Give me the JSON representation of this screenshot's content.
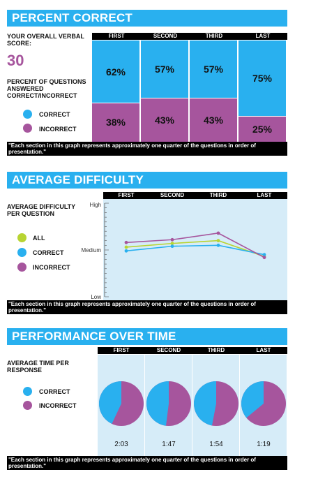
{
  "section1": {
    "title": "PERCENT CORRECT",
    "score_label": "YOUR OVERALL VERBAL SCORE:",
    "score": "30",
    "subtitle": "PERCENT OF QUESTIONS ANSWERED CORRECT/INCORRECT",
    "legend": {
      "correct": "CORRECT",
      "incorrect": "INCORRECT"
    },
    "footnote": "\"Each section in this graph represents approximately one quarter of the questions in order of presentation.\""
  },
  "section2": {
    "title": "AVERAGE DIFFICULTY",
    "subtitle": "AVERAGE DIFFICULTY PER QUESTION",
    "legend": {
      "all": "ALL",
      "correct": "CORRECT",
      "incorrect": "INCORRECT"
    },
    "footnote": "\"Each section in this graph represents approximately one quarter of the questions in order of presentation.\""
  },
  "section3": {
    "title": "PERFORMANCE OVER TIME",
    "subtitle": "AVERAGE TIME PER RESPONSE",
    "legend": {
      "correct": "CORRECT",
      "incorrect": "INCORRECT"
    },
    "footnote": "\"Each section in this graph represents approximately one quarter of the questions in order of presentation.\""
  },
  "colors": {
    "blue": "#29b0ef",
    "purple": "#a6559d",
    "green": "#b8d432",
    "panel": "#d6ecf8"
  },
  "chart_data": [
    {
      "type": "bar",
      "title": "PERCENT CORRECT",
      "categories": [
        "FIRST",
        "SECOND",
        "THIRD",
        "LAST"
      ],
      "series": [
        {
          "name": "CORRECT",
          "values": [
            62,
            57,
            57,
            75
          ],
          "labels": [
            "62%",
            "57%",
            "57%",
            "75%"
          ]
        },
        {
          "name": "INCORRECT",
          "values": [
            38,
            43,
            43,
            25
          ],
          "labels": [
            "38%",
            "43%",
            "43%",
            "25%"
          ]
        }
      ],
      "ylim": [
        0,
        100
      ]
    },
    {
      "type": "line",
      "title": "AVERAGE DIFFICULTY",
      "categories": [
        "FIRST",
        "SECOND",
        "THIRD",
        "LAST"
      ],
      "y_tick_labels": [
        "High",
        "Medium",
        "Low"
      ],
      "ylim": [
        0,
        1
      ],
      "series": [
        {
          "name": "ALL",
          "values": [
            0.53,
            0.57,
            0.6,
            0.43
          ]
        },
        {
          "name": "CORRECT",
          "values": [
            0.49,
            0.54,
            0.55,
            0.45
          ]
        },
        {
          "name": "INCORRECT",
          "values": [
            0.58,
            0.61,
            0.68,
            0.42
          ]
        }
      ]
    },
    {
      "type": "pie",
      "title": "PERFORMANCE OVER TIME",
      "categories": [
        "FIRST",
        "SECOND",
        "THIRD",
        "LAST"
      ],
      "times": [
        "2:03",
        "1:47",
        "1:54",
        "1:19"
      ],
      "correct_share": [
        0.43,
        0.48,
        0.47,
        0.36
      ]
    }
  ]
}
